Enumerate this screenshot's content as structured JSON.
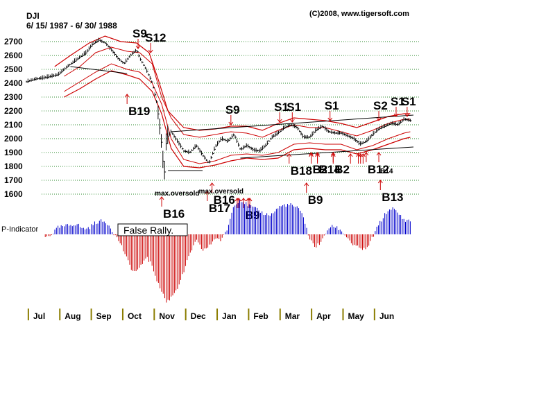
{
  "header": {
    "symbol": "DJI",
    "date_range": "6/ 15/ 1987 - 6/ 30/ 1988",
    "copyright": "(C)2008, www.tigersoft.com"
  },
  "colors": {
    "price": "#000000",
    "band_red": "#cc0000",
    "signal": "#cc0000",
    "grid": "#2e8b2e",
    "pos": "#0000cc",
    "neg": "#cc0000",
    "trend": "#000000"
  },
  "chart_data": {
    "type": "line",
    "title": "DJI",
    "subtitle": "6/ 15/ 1987 - 6/ 30/ 1988",
    "ylim": [
      1600,
      2700
    ],
    "yticks": [
      2700,
      2600,
      2500,
      2400,
      2300,
      2200,
      2100,
      2000,
      1900,
      1800,
      1700,
      1600
    ],
    "xlim": [
      0,
      12.5
    ],
    "months": [
      "Jul",
      "Aug",
      "Sep",
      "Oct",
      "Nov",
      "Dec",
      "Jan",
      "Feb",
      "Mar",
      "Apr",
      "May",
      "Jun"
    ],
    "price_path": [
      [
        0.0,
        2410
      ],
      [
        0.3,
        2430
      ],
      [
        0.6,
        2440
      ],
      [
        1.0,
        2460
      ],
      [
        1.3,
        2520
      ],
      [
        1.6,
        2570
      ],
      [
        1.9,
        2620
      ],
      [
        2.1,
        2680
      ],
      [
        2.3,
        2710
      ],
      [
        2.5,
        2690
      ],
      [
        2.7,
        2640
      ],
      [
        2.9,
        2580
      ],
      [
        3.1,
        2540
      ],
      [
        3.3,
        2600
      ],
      [
        3.5,
        2640
      ],
      [
        3.6,
        2580
      ],
      [
        3.8,
        2500
      ],
      [
        4.0,
        2400
      ],
      [
        4.15,
        2250
      ],
      [
        4.3,
        1950
      ],
      [
        4.38,
        1720
      ],
      [
        4.45,
        2000
      ],
      [
        4.6,
        2050
      ],
      [
        4.8,
        1980
      ],
      [
        5.0,
        1910
      ],
      [
        5.2,
        1900
      ],
      [
        5.4,
        1950
      ],
      [
        5.6,
        1880
      ],
      [
        5.8,
        1820
      ],
      [
        6.0,
        1940
      ],
      [
        6.2,
        2000
      ],
      [
        6.4,
        1980
      ],
      [
        6.6,
        2030
      ],
      [
        6.8,
        1920
      ],
      [
        7.0,
        1950
      ],
      [
        7.2,
        1920
      ],
      [
        7.4,
        1910
      ],
      [
        7.6,
        1950
      ],
      [
        7.8,
        2010
      ],
      [
        8.0,
        2040
      ],
      [
        8.2,
        2080
      ],
      [
        8.4,
        2100
      ],
      [
        8.6,
        2080
      ],
      [
        8.8,
        2010
      ],
      [
        9.0,
        2010
      ],
      [
        9.2,
        2060
      ],
      [
        9.4,
        2090
      ],
      [
        9.6,
        2050
      ],
      [
        9.8,
        2040
      ],
      [
        10.0,
        2040
      ],
      [
        10.2,
        2020
      ],
      [
        10.4,
        2000
      ],
      [
        10.6,
        1960
      ],
      [
        10.8,
        1980
      ],
      [
        11.0,
        2030
      ],
      [
        11.2,
        2070
      ],
      [
        11.4,
        2090
      ],
      [
        11.6,
        2110
      ],
      [
        11.8,
        2100
      ],
      [
        12.0,
        2140
      ],
      [
        12.2,
        2130
      ]
    ],
    "band_outer_upper": [
      [
        0.9,
        2520
      ],
      [
        1.4,
        2600
      ],
      [
        2.0,
        2690
      ],
      [
        2.5,
        2740
      ],
      [
        3.0,
        2700
      ],
      [
        3.5,
        2690
      ],
      [
        3.9,
        2620
      ],
      [
        4.2,
        2420
      ],
      [
        4.5,
        2200
      ],
      [
        5.0,
        2080
      ],
      [
        5.5,
        2060
      ],
      [
        6.0,
        2070
      ],
      [
        6.5,
        2090
      ],
      [
        7.0,
        2090
      ],
      [
        7.5,
        2060
      ],
      [
        8.0,
        2110
      ],
      [
        8.5,
        2150
      ],
      [
        9.0,
        2140
      ],
      [
        9.5,
        2130
      ],
      [
        10.0,
        2110
      ],
      [
        10.5,
        2080
      ],
      [
        11.0,
        2120
      ],
      [
        11.5,
        2160
      ],
      [
        12.0,
        2180
      ],
      [
        12.2,
        2180
      ]
    ],
    "band_inner_upper": [
      [
        1.2,
        2450
      ],
      [
        1.7,
        2520
      ],
      [
        2.2,
        2620
      ],
      [
        2.7,
        2660
      ],
      [
        3.2,
        2630
      ],
      [
        3.6,
        2620
      ],
      [
        4.0,
        2540
      ],
      [
        4.3,
        2300
      ],
      [
        4.6,
        2150
      ],
      [
        5.0,
        2030
      ],
      [
        5.5,
        2010
      ],
      [
        6.0,
        2030
      ],
      [
        6.5,
        2050
      ],
      [
        7.0,
        2040
      ],
      [
        7.5,
        2010
      ],
      [
        8.0,
        2060
      ],
      [
        8.5,
        2100
      ],
      [
        9.0,
        2080
      ],
      [
        9.5,
        2080
      ],
      [
        10.0,
        2050
      ],
      [
        10.5,
        2020
      ],
      [
        11.0,
        2060
      ],
      [
        11.5,
        2110
      ],
      [
        12.0,
        2140
      ],
      [
        12.2,
        2140
      ]
    ],
    "band_inner_lower": [
      [
        1.2,
        2340
      ],
      [
        1.7,
        2410
      ],
      [
        2.2,
        2480
      ],
      [
        2.7,
        2540
      ],
      [
        3.2,
        2500
      ],
      [
        3.6,
        2480
      ],
      [
        4.0,
        2400
      ],
      [
        4.3,
        2250
      ],
      [
        4.6,
        2000
      ],
      [
        5.0,
        1850
      ],
      [
        5.5,
        1820
      ],
      [
        6.0,
        1840
      ],
      [
        6.5,
        1880
      ],
      [
        7.0,
        1890
      ],
      [
        7.5,
        1880
      ],
      [
        8.0,
        1900
      ],
      [
        8.5,
        1960
      ],
      [
        9.0,
        1970
      ],
      [
        9.5,
        1960
      ],
      [
        10.0,
        1960
      ],
      [
        10.5,
        1920
      ],
      [
        11.0,
        1950
      ],
      [
        11.5,
        2000
      ],
      [
        12.0,
        2040
      ],
      [
        12.2,
        2050
      ]
    ],
    "band_outer_lower": [
      [
        1.2,
        2300
      ],
      [
        1.7,
        2360
      ],
      [
        2.2,
        2430
      ],
      [
        2.7,
        2490
      ],
      [
        3.2,
        2460
      ],
      [
        3.6,
        2430
      ],
      [
        4.0,
        2340
      ],
      [
        4.3,
        2180
      ],
      [
        4.6,
        1930
      ],
      [
        5.0,
        1800
      ],
      [
        5.5,
        1790
      ],
      [
        6.0,
        1810
      ],
      [
        6.5,
        1840
      ],
      [
        7.0,
        1860
      ],
      [
        7.5,
        1850
      ],
      [
        8.0,
        1860
      ],
      [
        8.5,
        1920
      ],
      [
        9.0,
        1930
      ],
      [
        9.5,
        1920
      ],
      [
        10.0,
        1920
      ],
      [
        10.5,
        1890
      ],
      [
        11.0,
        1920
      ],
      [
        11.5,
        1960
      ],
      [
        12.0,
        2000
      ],
      [
        12.2,
        2010
      ]
    ],
    "trendlines": [
      [
        [
          1.4,
          2520
        ],
        [
          3.2,
          2470
        ]
      ],
      [
        [
          4.6,
          2050
        ],
        [
          12.3,
          2170
        ]
      ],
      [
        [
          6.8,
          1860
        ],
        [
          12.3,
          1940
        ]
      ],
      [
        [
          4.5,
          1770
        ],
        [
          5.6,
          1770
        ]
      ]
    ],
    "signals": [
      {
        "label": "S9",
        "x": 3.55,
        "price": 2650,
        "dir": "down",
        "big": true,
        "offset": -16
      },
      {
        "label": "S12",
        "x": 3.95,
        "price": 2620,
        "dir": "down",
        "big": true,
        "offset": -16
      },
      {
        "label": "B19",
        "x": 3.2,
        "price": 2320,
        "dir": "up",
        "big": true
      },
      {
        "label": "S9",
        "x": 6.5,
        "price": 2100,
        "dir": "down",
        "big": true
      },
      {
        "label": "S1",
        "x": 8.05,
        "price": 2120,
        "dir": "down",
        "big": true
      },
      {
        "label": "S1",
        "x": 8.45,
        "price": 2120,
        "dir": "down",
        "big": true
      },
      {
        "label": "S1",
        "x": 9.65,
        "price": 2130,
        "dir": "down",
        "big": true
      },
      {
        "label": "S2",
        "x": 11.2,
        "price": 2130,
        "dir": "down",
        "big": true
      },
      {
        "label": "S1",
        "x": 11.75,
        "price": 2160,
        "dir": "down",
        "big": true
      },
      {
        "label": "S1",
        "x": 12.1,
        "price": 2160,
        "dir": "down",
        "big": true
      },
      {
        "label": "B18",
        "x": 8.35,
        "price": 1890,
        "dir": "up",
        "big": true
      },
      {
        "label": "B2",
        "x": 9.05,
        "price": 1900,
        "dir": "up",
        "big": true
      },
      {
        "label": "B14",
        "x": 9.25,
        "price": 1900,
        "dir": "up",
        "big": true
      },
      {
        "label": "B2",
        "x": 9.75,
        "price": 1900,
        "dir": "up",
        "big": true
      },
      {
        "label": "B12",
        "x": 10.8,
        "price": 1900,
        "dir": "up",
        "big": true
      },
      {
        "label": "B14",
        "x": 11.2,
        "price": 1900,
        "dir": "up",
        "big": false
      },
      {
        "label": "B9",
        "x": 8.9,
        "price": 1680,
        "dir": "up",
        "big": true
      },
      {
        "label": "B13",
        "x": 11.25,
        "price": 1700,
        "dir": "up",
        "big": true
      },
      {
        "label": "B16",
        "x": 4.3,
        "price": 1580,
        "dir": "up",
        "big": true
      },
      {
        "label": "B16",
        "x": 5.9,
        "price": 1680,
        "dir": "up",
        "big": true
      },
      {
        "label": "B17",
        "x": 5.75,
        "price": 1620,
        "dir": "up",
        "big": true
      },
      {
        "label": "B9",
        "x": 6.9,
        "price": 1570,
        "dir": "up",
        "big": true
      }
    ],
    "extra_arrows": [
      {
        "x": 6.7,
        "price": 1570
      },
      {
        "x": 6.75,
        "price": 1570
      },
      {
        "x": 7.05,
        "price": 1570
      },
      {
        "x": 7.1,
        "price": 1570
      },
      {
        "x": 9.05,
        "price": 1890
      },
      {
        "x": 9.25,
        "price": 1890
      },
      {
        "x": 9.75,
        "price": 1890
      },
      {
        "x": 10.3,
        "price": 1890
      },
      {
        "x": 10.55,
        "price": 1890
      },
      {
        "x": 10.62,
        "price": 1890
      },
      {
        "x": 10.7,
        "price": 1890
      }
    ],
    "annotations": [
      {
        "text": "max.oversold",
        "x": 4.3,
        "price": 1590
      },
      {
        "text": "max.oversold",
        "x": 5.7,
        "price": 1605
      }
    ],
    "indicator": {
      "label": "P-Indicator",
      "annotation": "False Rally.",
      "range": [
        -110,
        55
      ],
      "points": [
        [
          0.6,
          -5
        ],
        [
          0.8,
          0
        ],
        [
          1.0,
          10
        ],
        [
          1.2,
          12
        ],
        [
          1.4,
          14
        ],
        [
          1.6,
          16
        ],
        [
          1.8,
          8
        ],
        [
          2.0,
          10
        ],
        [
          2.2,
          18
        ],
        [
          2.4,
          20
        ],
        [
          2.6,
          16
        ],
        [
          2.8,
          0
        ],
        [
          3.0,
          -15
        ],
        [
          3.2,
          -40
        ],
        [
          3.4,
          -60
        ],
        [
          3.6,
          -55
        ],
        [
          3.8,
          -35
        ],
        [
          4.0,
          -50
        ],
        [
          4.2,
          -80
        ],
        [
          4.35,
          -95
        ],
        [
          4.45,
          -108
        ],
        [
          4.6,
          -100
        ],
        [
          4.8,
          -85
        ],
        [
          5.0,
          -60
        ],
        [
          5.2,
          -30
        ],
        [
          5.4,
          -10
        ],
        [
          5.6,
          -25
        ],
        [
          5.8,
          -20
        ],
        [
          6.0,
          -5
        ],
        [
          6.2,
          -10
        ],
        [
          6.4,
          10
        ],
        [
          6.6,
          45
        ],
        [
          6.8,
          52
        ],
        [
          7.0,
          45
        ],
        [
          7.2,
          40
        ],
        [
          7.4,
          35
        ],
        [
          7.6,
          30
        ],
        [
          7.8,
          30
        ],
        [
          8.0,
          40
        ],
        [
          8.2,
          44
        ],
        [
          8.4,
          44
        ],
        [
          8.6,
          40
        ],
        [
          8.8,
          28
        ],
        [
          9.0,
          -8
        ],
        [
          9.2,
          -20
        ],
        [
          9.4,
          -10
        ],
        [
          9.6,
          10
        ],
        [
          9.8,
          12
        ],
        [
          10.0,
          6
        ],
        [
          10.2,
          -5
        ],
        [
          10.4,
          -18
        ],
        [
          10.6,
          -22
        ],
        [
          10.8,
          -25
        ],
        [
          11.0,
          -5
        ],
        [
          11.2,
          15
        ],
        [
          11.4,
          30
        ],
        [
          11.6,
          40
        ],
        [
          11.8,
          32
        ],
        [
          12.0,
          22
        ],
        [
          12.2,
          20
        ]
      ]
    }
  }
}
